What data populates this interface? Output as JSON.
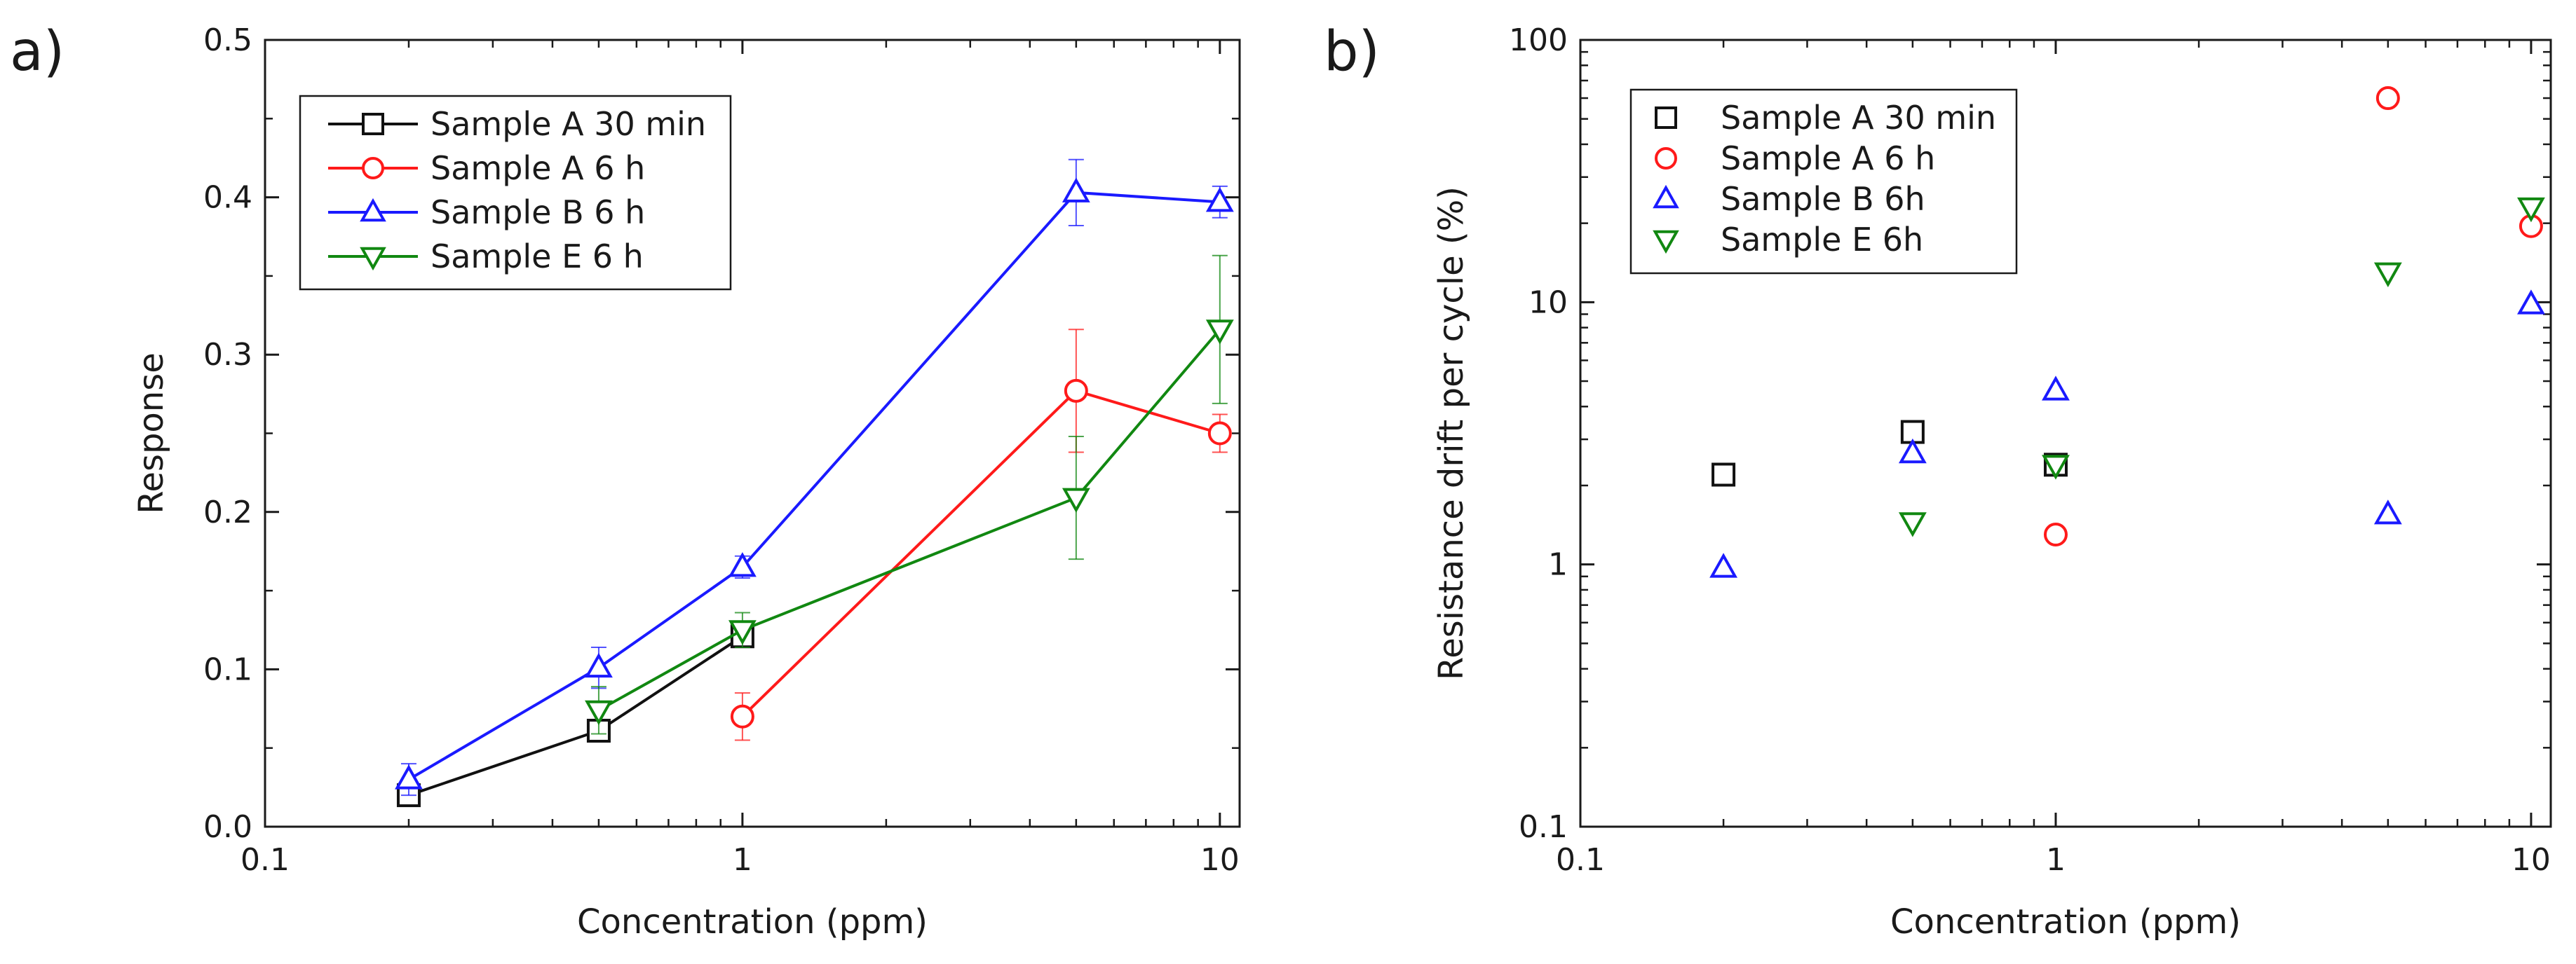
{
  "chart_data": [
    {
      "panel": "a)",
      "type": "line",
      "xscale": "log",
      "xlabel": "Concentration (ppm)",
      "ylabel": "Response",
      "xlim": [
        0.1,
        11
      ],
      "ylim": [
        0,
        0.5
      ],
      "xticks": [
        {
          "value": 0.1,
          "label": "0.1"
        },
        {
          "value": 1,
          "label": "1"
        },
        {
          "value": 10,
          "label": "10"
        }
      ],
      "yticks": [
        {
          "value": 0.0,
          "label": "0.0"
        },
        {
          "value": 0.1,
          "label": "0.1"
        },
        {
          "value": 0.2,
          "label": "0.2"
        },
        {
          "value": 0.3,
          "label": "0.3"
        },
        {
          "value": 0.4,
          "label": "0.4"
        },
        {
          "value": 0.5,
          "label": "0.5"
        }
      ],
      "legend_position": "top-left",
      "series": [
        {
          "name": "Sample A 30 min",
          "color": "#111111",
          "marker": "square",
          "points": [
            {
              "x": 0.2,
              "y": 0.02,
              "err": 0.004
            },
            {
              "x": 0.5,
              "y": 0.061,
              "err": 0.005
            },
            {
              "x": 1,
              "y": 0.121,
              "err": 0.006
            }
          ]
        },
        {
          "name": "Sample A 6 h",
          "color": "#ff1a1a",
          "marker": "circle",
          "points": [
            {
              "x": 1,
              "y": 0.07,
              "err": 0.015
            },
            {
              "x": 5,
              "y": 0.277,
              "err": 0.039
            },
            {
              "x": 10,
              "y": 0.25,
              "err": 0.012
            }
          ]
        },
        {
          "name": "Sample B 6 h",
          "color": "#1a1aff",
          "marker": "triangle-up",
          "points": [
            {
              "x": 0.2,
              "y": 0.03,
              "err": 0.01
            },
            {
              "x": 0.5,
              "y": 0.101,
              "err": 0.013
            },
            {
              "x": 1,
              "y": 0.165,
              "err": 0.007
            },
            {
              "x": 5,
              "y": 0.403,
              "err": 0.021
            },
            {
              "x": 10,
              "y": 0.397,
              "err": 0.01
            }
          ]
        },
        {
          "name": "Sample E 6 h",
          "color": "#118811",
          "marker": "triangle-down",
          "points": [
            {
              "x": 0.5,
              "y": 0.074,
              "err": 0.015
            },
            {
              "x": 1,
              "y": 0.125,
              "err": 0.011
            },
            {
              "x": 5,
              "y": 0.209,
              "err": 0.039
            },
            {
              "x": 10,
              "y": 0.316,
              "err": 0.047
            }
          ]
        }
      ]
    },
    {
      "panel": "b)",
      "type": "scatter",
      "xscale": "log",
      "yscale": "log",
      "xlabel": "Concentration (ppm)",
      "ylabel": "Resistance drift per cycle (%)",
      "xlim": [
        0.1,
        11
      ],
      "ylim": [
        0.1,
        100
      ],
      "xticks": [
        {
          "value": 0.1,
          "label": "0.1"
        },
        {
          "value": 1,
          "label": "1"
        },
        {
          "value": 10,
          "label": "10"
        }
      ],
      "yticks": [
        {
          "value": 0.1,
          "label": "0.1"
        },
        {
          "value": 1,
          "label": "1"
        },
        {
          "value": 10,
          "label": "10"
        },
        {
          "value": 100,
          "label": "100"
        }
      ],
      "legend_position": "top-left",
      "series": [
        {
          "name": "Sample A 30 min",
          "color": "#111111",
          "marker": "square",
          "points": [
            {
              "x": 0.2,
              "y": 2.2
            },
            {
              "x": 0.5,
              "y": 3.2
            },
            {
              "x": 1,
              "y": 2.4
            }
          ]
        },
        {
          "name": "Sample A 6 h",
          "color": "#ff1a1a",
          "marker": "circle",
          "points": [
            {
              "x": 1,
              "y": 1.3
            },
            {
              "x": 5,
              "y": 60
            },
            {
              "x": 10,
              "y": 19.5
            }
          ]
        },
        {
          "name": "Sample B 6h",
          "color": "#1a1aff",
          "marker": "triangle-up",
          "points": [
            {
              "x": 0.2,
              "y": 0.97
            },
            {
              "x": 0.5,
              "y": 2.65
            },
            {
              "x": 1,
              "y": 4.6
            },
            {
              "x": 5,
              "y": 1.55
            },
            {
              "x": 10,
              "y": 9.8
            }
          ]
        },
        {
          "name": "Sample E 6h",
          "color": "#118811",
          "marker": "triangle-down",
          "points": [
            {
              "x": 0.5,
              "y": 1.45
            },
            {
              "x": 1,
              "y": 2.4
            },
            {
              "x": 5,
              "y": 13
            },
            {
              "x": 10,
              "y": 23
            }
          ]
        }
      ]
    }
  ]
}
